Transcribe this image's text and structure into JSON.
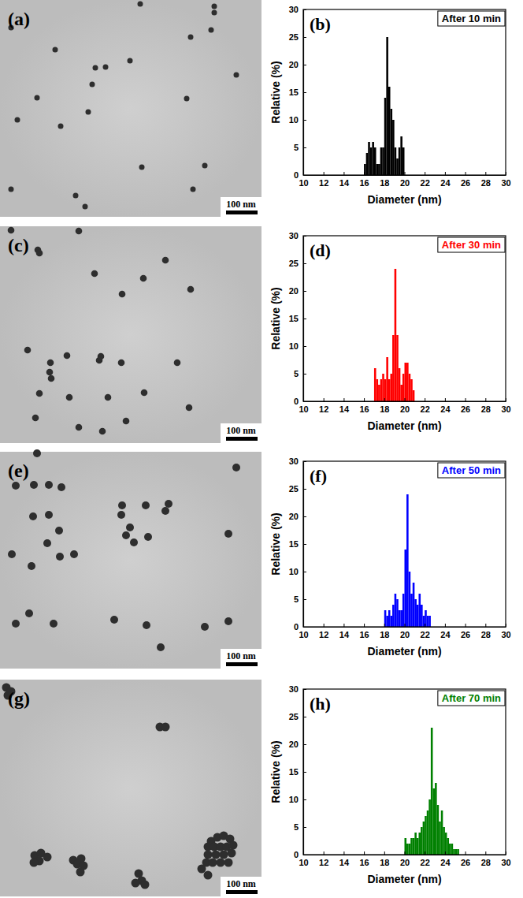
{
  "images": [
    {
      "label": "(a)",
      "scale_bar": "100 nm"
    },
    {
      "label": "(c)",
      "scale_bar": "100 nm"
    },
    {
      "label": "(e)",
      "scale_bar": "100 nm"
    },
    {
      "label": "(g)",
      "scale_bar": "100 nm"
    }
  ],
  "chart_data": [
    {
      "type": "histogram",
      "title": "After 10 min",
      "annotations": [
        "(b)"
      ],
      "x_label": "Diameter (nm)",
      "y_label": "Relative (%)",
      "color": "#000000",
      "bins": [
        16.0,
        16.2,
        16.4,
        16.6,
        16.8,
        17.0,
        17.2,
        17.4,
        17.6,
        17.8,
        18.0,
        18.2,
        18.4,
        18.6,
        18.8,
        19.0,
        19.2,
        19.4,
        19.6,
        19.8,
        20.0
      ],
      "counts": [
        2,
        4,
        6,
        5,
        6,
        5,
        2,
        2,
        5,
        5,
        14,
        25,
        16,
        12,
        10,
        5,
        3,
        5,
        7,
        5
      ],
      "xlim": [
        10,
        30
      ],
      "xticks": [
        10,
        12,
        14,
        16,
        18,
        20,
        22,
        24,
        26,
        28,
        30
      ],
      "ylim": [
        0,
        30
      ],
      "yticks": [
        0,
        5,
        10,
        15,
        20,
        25,
        30
      ]
    },
    {
      "type": "histogram",
      "title": "After 30 min",
      "annotations": [
        "(d)"
      ],
      "x_label": "Diameter (nm)",
      "y_label": "Relative (%)",
      "color": "#ff0000",
      "bins": [
        17.0,
        17.2,
        17.4,
        17.6,
        17.8,
        18.0,
        18.2,
        18.4,
        18.6,
        18.8,
        19.0,
        19.2,
        19.4,
        19.6,
        19.8,
        20.0,
        20.2,
        20.4,
        20.6,
        20.8,
        21.0
      ],
      "counts": [
        6,
        4,
        3,
        4,
        5,
        4,
        8,
        4,
        5,
        12,
        24,
        12,
        6,
        3,
        5,
        7,
        7,
        5,
        4,
        2
      ],
      "xlim": [
        10,
        30
      ],
      "xticks": [
        10,
        12,
        14,
        16,
        18,
        20,
        22,
        24,
        26,
        28,
        30
      ],
      "ylim": [
        0,
        30
      ],
      "yticks": [
        0,
        5,
        10,
        15,
        20,
        25,
        30
      ]
    },
    {
      "type": "histogram",
      "title": "After 50 min",
      "annotations": [
        "(f)"
      ],
      "x_label": "Diameter (nm)",
      "y_label": "Relative (%)",
      "color": "#0000ff",
      "bins": [
        18.0,
        18.2,
        18.4,
        18.6,
        18.8,
        19.0,
        19.2,
        19.4,
        19.6,
        19.8,
        20.0,
        20.2,
        20.4,
        20.6,
        20.8,
        21.0,
        21.2,
        21.4,
        21.6,
        21.8,
        22.0,
        22.2,
        22.4,
        22.6
      ],
      "counts": [
        3,
        2,
        3,
        2,
        4,
        6,
        5,
        3,
        3,
        6,
        14,
        24,
        10,
        6,
        8,
        5,
        4,
        6,
        4,
        2,
        3,
        2,
        2
      ],
      "xlim": [
        10,
        30
      ],
      "xticks": [
        10,
        12,
        14,
        16,
        18,
        20,
        22,
        24,
        26,
        28,
        30
      ],
      "ylim": [
        0,
        30
      ],
      "yticks": [
        0,
        5,
        10,
        15,
        20,
        25,
        30
      ]
    },
    {
      "type": "histogram",
      "title": "After 70 min",
      "annotations": [
        "(h)"
      ],
      "x_label": "Diameter (nm)",
      "y_label": "Relative (%)",
      "color": "#008000",
      "bins": [
        20.0,
        20.2,
        20.4,
        20.6,
        20.8,
        21.0,
        21.2,
        21.4,
        21.6,
        21.8,
        22.0,
        22.2,
        22.4,
        22.6,
        22.8,
        23.0,
        23.2,
        23.4,
        23.6,
        23.8,
        24.0,
        24.2,
        24.4,
        24.6,
        24.8,
        25.0,
        25.2,
        25.4
      ],
      "counts": [
        3,
        2,
        2,
        3,
        3,
        4,
        3,
        4,
        5,
        6,
        7,
        8,
        10,
        23,
        12,
        13,
        9,
        6,
        8,
        5,
        4,
        3,
        2,
        2,
        1,
        1,
        1
      ],
      "xlim": [
        10,
        30
      ],
      "xticks": [
        10,
        12,
        14,
        16,
        18,
        20,
        22,
        24,
        26,
        28,
        30
      ],
      "ylim": [
        0,
        30
      ],
      "yticks": [
        0,
        5,
        10,
        15,
        20,
        25,
        30
      ]
    }
  ]
}
